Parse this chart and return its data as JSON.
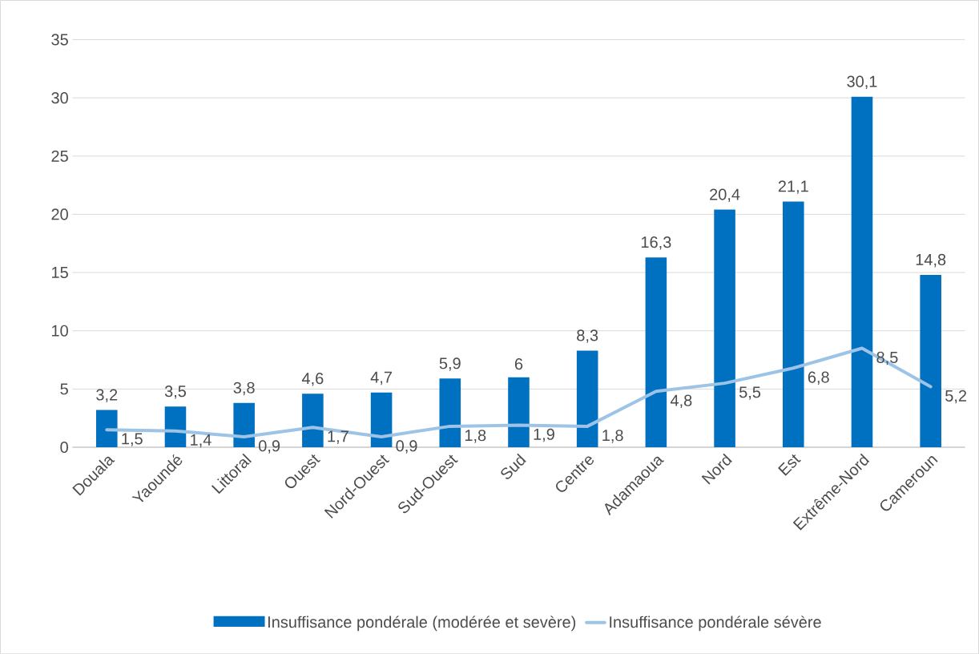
{
  "chart_data": {
    "type": "bar",
    "categories": [
      "Douala",
      "Yaoundé",
      "Littoral",
      "Ouest",
      "Nord-Ouest",
      "Sud-Ouest",
      "Sud",
      "Centre",
      "Adamaoua",
      "Nord",
      "Est",
      "Extrême-Nord",
      "Cameroun"
    ],
    "series": [
      {
        "name": "Insuffisance pondérale (modérée et sevère)",
        "color": "#0070c0",
        "values": [
          3.2,
          3.5,
          3.8,
          4.6,
          4.7,
          5.9,
          6,
          8.3,
          16.3,
          20.4,
          21.1,
          30.1,
          14.8
        ],
        "value_labels": [
          "3,2",
          "3,5",
          "3,8",
          "4,6",
          "4,7",
          "5,9",
          "6",
          "8,3",
          "16,3",
          "20,4",
          "21,1",
          "30,1",
          "14,8"
        ]
      },
      {
        "name": "Insuffisance pondérale sévère",
        "type": "line",
        "line_style": "solid",
        "color": "#9dc3e6",
        "values": [
          1.5,
          1.4,
          0.9,
          1.7,
          0.9,
          1.8,
          1.9,
          1.8,
          4.8,
          5.5,
          6.8,
          8.5,
          5.2
        ],
        "value_labels": [
          "1,5",
          "1,4",
          "0,9",
          "1,7",
          "0,9",
          "1,8",
          "1,9",
          "1,8",
          "4,8",
          "5,5",
          "6,8",
          "8,5",
          "5,2"
        ]
      }
    ],
    "ylim": [
      0,
      35
    ],
    "yticks": [
      0,
      5,
      10,
      15,
      20,
      25,
      30,
      35
    ],
    "grid": "y",
    "legend": "bottom"
  }
}
